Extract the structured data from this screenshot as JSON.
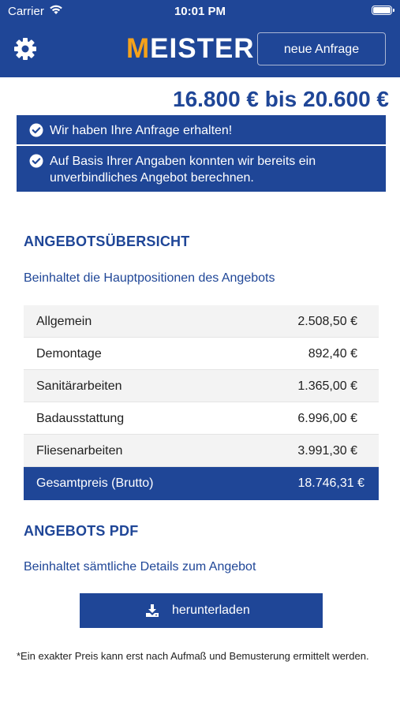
{
  "status_bar": {
    "carrier": "Carrier",
    "time": "10:01 PM"
  },
  "header": {
    "logo_first": "M",
    "logo_rest": "EISTER",
    "new_request_label": "neue Anfrage",
    "settings_icon": "gear-icon"
  },
  "price_range": "16.800 € bis 20.600 €",
  "notices": [
    {
      "text": "Wir haben Ihre Anfrage erhalten!",
      "icon": "check-circle-icon"
    },
    {
      "text": "Auf Basis Ihrer Angaben konnten wir bereits ein unverbindliches Angebot berechnen.",
      "icon": "check-circle-icon"
    }
  ],
  "overview": {
    "title": "ANGEBOTSÜBERSICHT",
    "subtitle": "Beinhaltet die Hauptpositionen des Angebots",
    "rows": [
      {
        "label": "Allgemein",
        "value": "2.508,50 €"
      },
      {
        "label": "Demontage",
        "value": "892,40 €"
      },
      {
        "label": "Sanitärarbeiten",
        "value": "1.365,00 €"
      },
      {
        "label": "Badausstattung",
        "value": "6.996,00 €"
      },
      {
        "label": "Fliesenarbeiten",
        "value": "3.991,30 €"
      }
    ],
    "total": {
      "label": "Gesamtpreis (Brutto)",
      "value": "18.746,31 €"
    }
  },
  "pdf": {
    "title": "ANGEBOTS PDF",
    "subtitle": "Beinhaltet sämtliche Details zum Angebot",
    "download_label": "herunterladen",
    "download_icon": "download-icon"
  },
  "footnote": "*Ein exakter Preis kann erst nach Aufmaß und Bemusterung ermittelt werden.",
  "colors": {
    "brand_blue": "#1f4697",
    "logo_accent": "#f5a21b",
    "row_shade": "#f3f3f3"
  }
}
